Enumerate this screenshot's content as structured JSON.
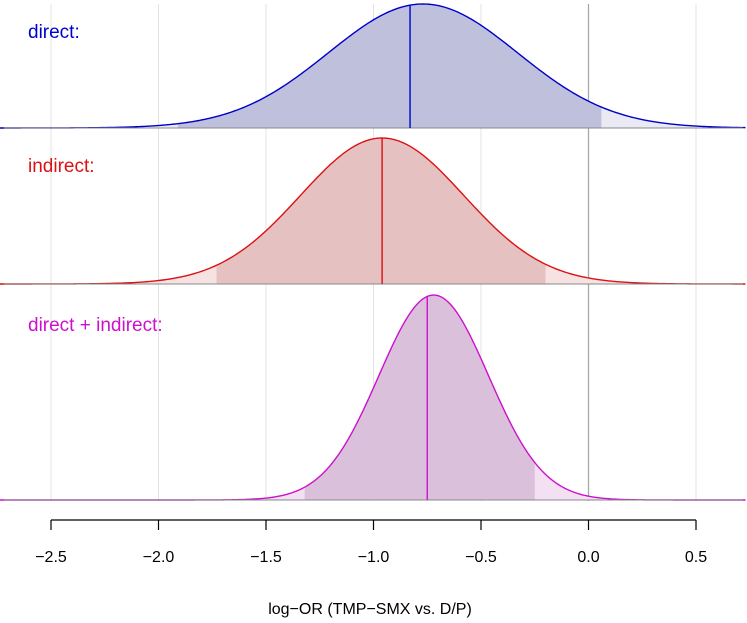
{
  "chart_data": {
    "type": "area",
    "xlabel": "log−OR (TMP−SMX vs. D/P)",
    "xlim": [
      -2.95,
      0.73
    ],
    "x_ticks": [
      -2.5,
      -2.0,
      -1.5,
      -1.0,
      -0.5,
      0.0,
      0.5
    ],
    "x_tick_labels": [
      "−2.5",
      "−2.0",
      "−1.5",
      "−1.0",
      "−0.5",
      "0.0",
      "0.5"
    ],
    "reference_line_x": 0.0,
    "grid": true,
    "series": [
      {
        "name": "direct:",
        "color": "#0000cc",
        "fill_light": "#eaeaf4",
        "fill_dark": "#bfc0db",
        "peak": -0.77,
        "median": -0.83,
        "sd": 0.44,
        "interval": [
          -1.91,
          0.06
        ]
      },
      {
        "name": "indirect:",
        "color": "#dd1111",
        "fill_light": "#f6e2e2",
        "fill_dark": "#e6c1c1",
        "peak": -0.96,
        "median": -0.96,
        "sd": 0.38,
        "interval": [
          -1.73,
          -0.2
        ]
      },
      {
        "name": "direct + indirect:",
        "color": "#cc11cc",
        "fill_light": "#f3e0f3",
        "fill_dark": "#dbc0db",
        "peak": -0.72,
        "median": -0.75,
        "sd": 0.255,
        "interval": [
          -1.32,
          -0.25
        ]
      }
    ]
  }
}
